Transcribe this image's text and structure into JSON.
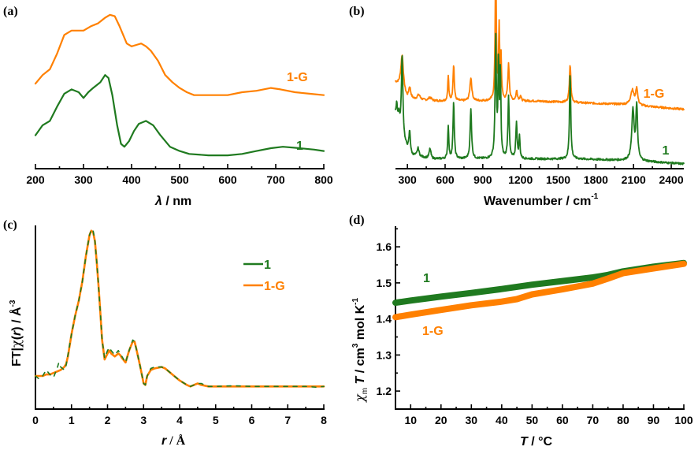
{
  "colors": {
    "series_1": "#1f7a1f",
    "series_1G": "#ff8000"
  },
  "chart_data": [
    {
      "panel": "(a)",
      "type": "line",
      "title": "",
      "xlabel": "λ / nm",
      "ylabel": "",
      "xlim": [
        200,
        800
      ],
      "xticks": [
        200,
        300,
        400,
        500,
        600,
        700,
        800
      ],
      "yticks": [],
      "grid": false,
      "series": [
        {
          "name": "1-G",
          "color": "#ff8000",
          "label_at": [
            700,
            "upper"
          ],
          "x": [
            200,
            215,
            230,
            245,
            260,
            275,
            300,
            315,
            330,
            345,
            355,
            365,
            375,
            390,
            400,
            410,
            420,
            430,
            440,
            455,
            470,
            485,
            500,
            515,
            530,
            560,
            600,
            630,
            660,
            690,
            710,
            740,
            770,
            800
          ],
          "y": [
            0.56,
            0.62,
            0.66,
            0.77,
            0.9,
            0.93,
            0.93,
            0.96,
            0.98,
            1.02,
            1.04,
            1.03,
            0.96,
            0.84,
            0.82,
            0.83,
            0.84,
            0.82,
            0.79,
            0.72,
            0.62,
            0.57,
            0.53,
            0.5,
            0.48,
            0.48,
            0.48,
            0.5,
            0.51,
            0.53,
            0.52,
            0.5,
            0.49,
            0.48
          ]
        },
        {
          "name": "1",
          "color": "#1f7a1f",
          "label_at": [
            720,
            "lower"
          ],
          "x": [
            200,
            215,
            230,
            245,
            260,
            275,
            290,
            300,
            310,
            320,
            335,
            345,
            352,
            360,
            370,
            378,
            385,
            395,
            405,
            415,
            430,
            445,
            460,
            480,
            500,
            520,
            560,
            600,
            630,
            660,
            690,
            715,
            750,
            780,
            800
          ],
          "y": [
            0.2,
            0.27,
            0.3,
            0.4,
            0.49,
            0.52,
            0.5,
            0.46,
            0.5,
            0.53,
            0.57,
            0.62,
            0.6,
            0.48,
            0.27,
            0.14,
            0.12,
            0.16,
            0.23,
            0.28,
            0.3,
            0.27,
            0.2,
            0.12,
            0.09,
            0.07,
            0.06,
            0.06,
            0.07,
            0.09,
            0.11,
            0.12,
            0.11,
            0.1,
            0.09
          ]
        }
      ]
    },
    {
      "panel": "(b)",
      "type": "line",
      "title": "",
      "xlabel": "Wavenumber / cm",
      "xlabel_superscript": "-1",
      "ylabel": "",
      "xlim": [
        205,
        2500
      ],
      "xticks": [
        300,
        600,
        900,
        1200,
        1500,
        1800,
        2100,
        2400
      ],
      "yticks": [],
      "grid": false,
      "series": [
        {
          "name": "1-G",
          "color": "#ff8000",
          "baseline": [
            [
              205,
              0.49
            ],
            [
              240,
              0.47
            ],
            [
              300,
              0.39
            ],
            [
              500,
              0.38
            ],
            [
              900,
              0.38
            ],
            [
              1300,
              0.38
            ],
            [
              1650,
              0.37
            ],
            [
              2000,
              0.36
            ],
            [
              2500,
              0.33
            ]
          ],
          "peaks": [
            [
              258,
              0.21,
              12
            ],
            [
              318,
              0.07,
              10
            ],
            [
              390,
              0.03,
              14
            ],
            [
              480,
              0.02,
              14
            ],
            [
              625,
              0.15,
              5
            ],
            [
              668,
              0.22,
              6
            ],
            [
              805,
              0.14,
              9
            ],
            [
              1003,
              0.92,
              5
            ],
            [
              1030,
              0.43,
              5
            ],
            [
              1045,
              0.25,
              5
            ],
            [
              1105,
              0.22,
              7
            ],
            [
              1170,
              0.06,
              7
            ],
            [
              1200,
              0.03,
              6
            ],
            [
              1595,
              0.23,
              7
            ],
            [
              2090,
              0.09,
              16
            ],
            [
              2125,
              0.1,
              9
            ]
          ]
        },
        {
          "name": "1",
          "color": "#1f7a1f",
          "baseline": [
            [
              205,
              0.3
            ],
            [
              240,
              0.22
            ],
            [
              280,
              0.12
            ],
            [
              330,
              0.05
            ],
            [
              500,
              0.03
            ],
            [
              900,
              0.03
            ],
            [
              1300,
              0.03
            ],
            [
              1650,
              0.03
            ],
            [
              2100,
              0.02
            ],
            [
              2500,
              0.0
            ]
          ],
          "peaks": [
            [
              215,
              0.08,
              6
            ],
            [
              232,
              0.06,
              5
            ],
            [
              258,
              0.48,
              7
            ],
            [
              318,
              0.13,
              7
            ],
            [
              385,
              0.05,
              9
            ],
            [
              480,
              0.06,
              8
            ],
            [
              625,
              0.2,
              5
            ],
            [
              668,
              0.34,
              6
            ],
            [
              805,
              0.3,
              7
            ],
            [
              1003,
              0.72,
              6
            ],
            [
              1025,
              0.55,
              5
            ],
            [
              1040,
              0.5,
              5
            ],
            [
              1105,
              0.38,
              6
            ],
            [
              1168,
              0.22,
              6
            ],
            [
              1192,
              0.13,
              5
            ],
            [
              1595,
              0.52,
              6
            ],
            [
              2095,
              0.3,
              11
            ],
            [
              2125,
              0.32,
              8
            ]
          ]
        }
      ]
    },
    {
      "panel": "(c)",
      "type": "line",
      "title": "",
      "xlabel": "r / Å",
      "ylabel": "FT|χ(r)| / Å",
      "ylabel_superscript": "-3",
      "xlim": [
        0,
        8
      ],
      "xticks": [
        0,
        1,
        2,
        3,
        4,
        5,
        6,
        7,
        8
      ],
      "yticks": [],
      "grid": false,
      "legend": {
        "placement": "top-right",
        "entries": [
          "1",
          "1-G"
        ]
      },
      "series": [
        {
          "name": "1",
          "color": "#1f7a1f",
          "style": "dashed",
          "x": [
            0,
            0.1,
            0.2,
            0.3,
            0.4,
            0.5,
            0.6,
            0.65,
            0.7,
            0.8,
            0.85,
            0.9,
            1.0,
            1.1,
            1.2,
            1.3,
            1.4,
            1.5,
            1.55,
            1.6,
            1.65,
            1.7,
            1.75,
            1.8,
            1.85,
            1.92,
            2.0,
            2.05,
            2.1,
            2.2,
            2.3,
            2.35,
            2.4,
            2.5,
            2.6,
            2.7,
            2.75,
            2.8,
            2.9,
            3.0,
            3.05,
            3.1,
            3.2,
            3.3,
            3.5,
            3.6,
            3.8,
            4.0,
            4.2,
            4.3,
            4.5,
            4.6,
            4.8,
            5,
            5.5,
            6,
            6.5,
            7,
            7.5,
            7.8,
            8
          ],
          "y": [
            0.1,
            0.08,
            0.1,
            0.14,
            0.11,
            0.09,
            0.15,
            0.19,
            0.16,
            0.14,
            0.17,
            0.24,
            0.38,
            0.5,
            0.6,
            0.73,
            0.9,
            1.04,
            1.08,
            1.07,
            1.0,
            0.86,
            0.7,
            0.52,
            0.34,
            0.22,
            0.27,
            0.29,
            0.27,
            0.24,
            0.27,
            0.25,
            0.23,
            0.19,
            0.27,
            0.34,
            0.33,
            0.28,
            0.17,
            0.05,
            0.04,
            0.1,
            0.15,
            0.16,
            0.16,
            0.15,
            0.11,
            0.07,
            0.04,
            0.03,
            0.05,
            0.05,
            0.03,
            0.03,
            0.035,
            0.03,
            0.03,
            0.03,
            0.03,
            0.025,
            0.03
          ]
        },
        {
          "name": "1-G",
          "color": "#ff8000",
          "style": "solid",
          "x": [
            0,
            0.1,
            0.2,
            0.3,
            0.4,
            0.5,
            0.6,
            0.7,
            0.8,
            0.85,
            0.9,
            1.0,
            1.1,
            1.2,
            1.3,
            1.4,
            1.5,
            1.55,
            1.6,
            1.65,
            1.7,
            1.75,
            1.8,
            1.85,
            1.92,
            2.0,
            2.05,
            2.1,
            2.2,
            2.3,
            2.35,
            2.4,
            2.5,
            2.6,
            2.7,
            2.75,
            2.8,
            2.9,
            3.0,
            3.05,
            3.1,
            3.2,
            3.3,
            3.5,
            3.6,
            3.8,
            4.0,
            4.2,
            4.3,
            4.5,
            4.6,
            4.8,
            5,
            5.5,
            6,
            6.5,
            7,
            7.5,
            7.8,
            8
          ],
          "y": [
            0.1,
            0.1,
            0.1,
            0.11,
            0.11,
            0.12,
            0.13,
            0.14,
            0.16,
            0.18,
            0.23,
            0.38,
            0.5,
            0.6,
            0.73,
            0.9,
            1.04,
            1.07,
            1.06,
            1.0,
            0.86,
            0.7,
            0.52,
            0.34,
            0.21,
            0.25,
            0.27,
            0.25,
            0.23,
            0.25,
            0.24,
            0.22,
            0.19,
            0.27,
            0.33,
            0.33,
            0.28,
            0.17,
            0.05,
            0.04,
            0.1,
            0.14,
            0.15,
            0.16,
            0.15,
            0.11,
            0.07,
            0.04,
            0.03,
            0.05,
            0.04,
            0.03,
            0.03,
            0.03,
            0.03,
            0.03,
            0.03,
            0.03,
            0.03,
            0.03
          ]
        }
      ]
    },
    {
      "panel": "(d)",
      "type": "line",
      "title": "",
      "xlabel": "T / °C",
      "ylabel": "χm T / cm3 mol K-1",
      "ylabel_parts": {
        "chi": "χ",
        "sub": "m",
        "T": " T",
        "unit_a": " / cm",
        "sup_a": "3",
        "unit_b": " mol K",
        "sup_b": "-1"
      },
      "xlim": [
        5,
        100
      ],
      "ylim": [
        1.15,
        1.655
      ],
      "xticks": [
        10,
        20,
        30,
        40,
        50,
        60,
        70,
        80,
        90,
        100
      ],
      "yticks": [
        1.2,
        1.3,
        1.4,
        1.5,
        1.6
      ],
      "ytick_labels": [
        "1.2",
        "1.3",
        "1.4",
        "1.5",
        "1.6"
      ],
      "grid": false,
      "series": [
        {
          "name": "1",
          "color": "#1f7a1f",
          "label_at": [
            15,
            1.508
          ],
          "x": [
            5,
            10,
            20,
            30,
            40,
            50,
            60,
            70,
            75,
            80,
            90,
            100
          ],
          "y": [
            1.445,
            1.451,
            1.462,
            1.472,
            1.483,
            1.495,
            1.505,
            1.515,
            1.522,
            1.532,
            1.545,
            1.555
          ]
        },
        {
          "name": "1-G",
          "color": "#ff8000",
          "label_at": [
            15,
            1.36
          ],
          "x": [
            5,
            10,
            20,
            30,
            40,
            45,
            50,
            60,
            70,
            75,
            80,
            90,
            100
          ],
          "y": [
            1.405,
            1.412,
            1.425,
            1.438,
            1.448,
            1.455,
            1.468,
            1.482,
            1.498,
            1.512,
            1.527,
            1.54,
            1.553
          ]
        }
      ]
    }
  ],
  "panels": {
    "a": {
      "label": "(a)",
      "xlabel_sym": "λ",
      "xlabel_rest": " / nm",
      "xticks": [
        "200",
        "300",
        "400",
        "500",
        "600",
        "700",
        "800"
      ],
      "label_1G": "1-G",
      "label_1": "1"
    },
    "b": {
      "label": "(b)",
      "xlabel": "Wavenumber / cm",
      "xlabel_sup": "-1",
      "xticks": [
        "300",
        "600",
        "900",
        "1200",
        "1500",
        "1800",
        "2100",
        "2400"
      ],
      "label_1G": "1-G",
      "label_1": "1"
    },
    "c": {
      "label": "(c)",
      "xlabel_sym": "r",
      "xlabel_rest": " / Å",
      "ylabel_a": "FT|",
      "ylabel_chi": "χ",
      "ylabel_b": "(",
      "ylabel_r": "r",
      "ylabel_c": ") / Å",
      "ylabel_sup": "-3",
      "xticks": [
        "0",
        "1",
        "2",
        "3",
        "4",
        "5",
        "6",
        "7",
        "8"
      ],
      "legend_1": "1",
      "legend_1G": "1-G"
    },
    "d": {
      "label": "(d)",
      "xlabel_sym": "T",
      "xlabel_rest": " / °C",
      "xticks": [
        "10",
        "20",
        "30",
        "40",
        "50",
        "60",
        "70",
        "80",
        "90",
        "100"
      ],
      "yticks": [
        "1.2",
        "1.3",
        "1.4",
        "1.5",
        "1.6"
      ],
      "label_1": "1",
      "label_1G": "1-G"
    }
  }
}
